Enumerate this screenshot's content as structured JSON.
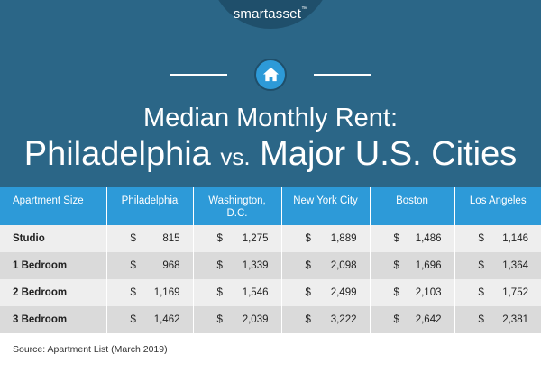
{
  "brand": {
    "logo_text": "smartasset",
    "logo_mark": "™"
  },
  "title": {
    "line1": "Median Monthly Rent:",
    "city": "Philadelphia",
    "vs": "vs.",
    "rest": "Major U.S. Cities"
  },
  "table": {
    "headers": [
      "Apartment Size",
      "Philadelphia",
      "Washington, D.C.",
      "New York City",
      "Boston",
      "Los Angeles"
    ],
    "currency_symbol": "$",
    "rows": [
      {
        "label": "Studio",
        "values": [
          "815",
          "1,275",
          "1,889",
          "1,486",
          "1,146"
        ]
      },
      {
        "label": "1 Bedroom",
        "values": [
          "968",
          "1,339",
          "2,098",
          "1,696",
          "1,364"
        ]
      },
      {
        "label": "2 Bedroom",
        "values": [
          "1,169",
          "1,546",
          "2,499",
          "2,103",
          "1,752"
        ]
      },
      {
        "label": "3 Bedroom",
        "values": [
          "1,462",
          "2,039",
          "3,222",
          "2,642",
          "2,381"
        ]
      }
    ]
  },
  "source": "Source: Apartment List (March 2019)",
  "colors": {
    "header_bg": "#2b6687",
    "accent_blue": "#2d9ad8",
    "logo_tab": "#1f4f6b",
    "row_light": "#eeeeee",
    "row_dark": "#dadada"
  },
  "icons": {
    "badge": "house-icon"
  }
}
